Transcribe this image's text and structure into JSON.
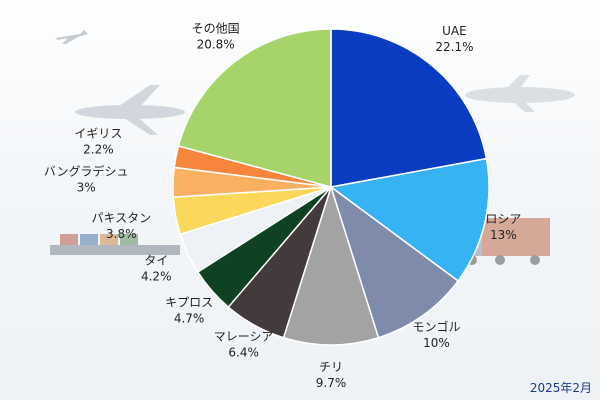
{
  "chart_data": {
    "type": "pie",
    "slices": [
      {
        "label": "UAE",
        "value_label": "22.1%",
        "value": 22.1,
        "color": "#0a3cc2"
      },
      {
        "label": "ロシア",
        "value_label": "13%",
        "value": 13.0,
        "color": "#36b3f5"
      },
      {
        "label": "モンゴル",
        "value_label": "10%",
        "value": 10.0,
        "color": "#7f8bab"
      },
      {
        "label": "チリ",
        "value_label": "9.7%",
        "value": 9.7,
        "color": "#a3a3a3"
      },
      {
        "label": "マレーシア",
        "value_label": "6.4%",
        "value": 6.4,
        "color": "#433b3b"
      },
      {
        "label": "キプロス",
        "value_label": "4.7%",
        "value": 4.7,
        "color": "#0e4222"
      },
      {
        "label": "タイ",
        "value_label": "4.2%",
        "value": 4.2,
        "color": "#eef2f7"
      },
      {
        "label": "パキスタン",
        "value_label": "3.8%",
        "value": 3.8,
        "color": "#fbd85a"
      },
      {
        "label": "バングラデシュ",
        "value_label": "3%",
        "value": 3.0,
        "color": "#f9b060"
      },
      {
        "label": "イギリス",
        "value_label": "2.2%",
        "value": 2.2,
        "color": "#f7853e"
      },
      {
        "label": "その他国",
        "value_label": "20.8%",
        "value": 20.8,
        "color": "#a6d46a"
      }
    ]
  },
  "date_note": "2025年2月"
}
